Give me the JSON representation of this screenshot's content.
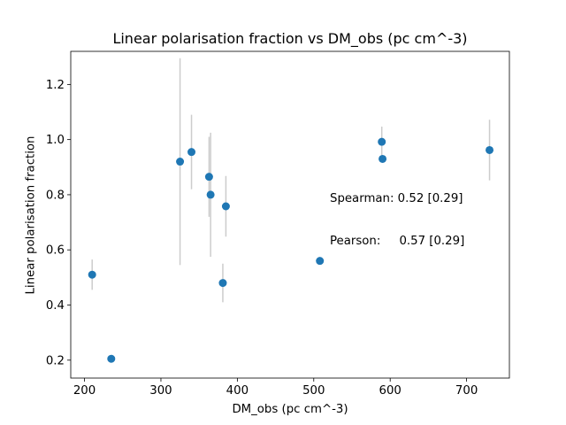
{
  "chart_data": {
    "type": "scatter",
    "title": "Linear polarisation fraction vs DM_obs (pc cm^-3)",
    "xlabel": "DM_obs (pc cm^-3)",
    "ylabel": "Linear polarisation fraction",
    "xlim": [
      182,
      756
    ],
    "ylim": [
      0.135,
      1.32
    ],
    "xticks": [
      200,
      300,
      400,
      500,
      600,
      700
    ],
    "yticks": [
      0.2,
      0.4,
      0.6,
      0.8,
      1.0,
      1.2
    ],
    "xtick_labels": [
      "200",
      "300",
      "400",
      "500",
      "600",
      "700"
    ],
    "ytick_labels": [
      "0.2",
      "0.4",
      "0.6",
      "0.8",
      "1.0",
      "1.2"
    ],
    "grid": false,
    "marker_color": "#1f77b4",
    "errorbar_color": "#cccccc",
    "points": [
      {
        "x": 210,
        "y": 0.51,
        "yerr": 0.055
      },
      {
        "x": 235,
        "y": 0.205,
        "yerr": 0
      },
      {
        "x": 325,
        "y": 0.92,
        "yerr": 0.375
      },
      {
        "x": 340,
        "y": 0.955,
        "yerr": 0.135
      },
      {
        "x": 363,
        "y": 0.865,
        "yerr": 0.145
      },
      {
        "x": 365,
        "y": 0.8,
        "yerr": 0.225
      },
      {
        "x": 381,
        "y": 0.48,
        "yerr": 0.07
      },
      {
        "x": 385,
        "y": 0.758,
        "yerr": 0.11
      },
      {
        "x": 508,
        "y": 0.56,
        "yerr": 0
      },
      {
        "x": 589,
        "y": 0.992,
        "yerr": 0.055
      },
      {
        "x": 590,
        "y": 0.93,
        "yerr": 0
      },
      {
        "x": 730,
        "y": 0.962,
        "yerr": 0.11
      }
    ],
    "annotations": {
      "spearman": "Spearman: 0.52 [0.29]",
      "pearson": "Pearson:     0.57 [0.29]"
    }
  }
}
